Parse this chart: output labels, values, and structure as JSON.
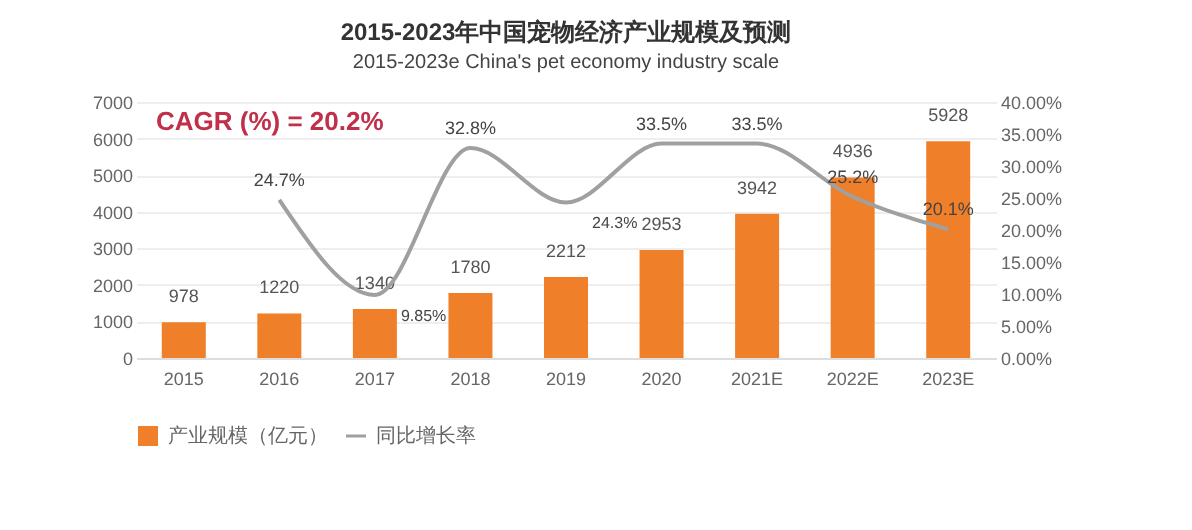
{
  "chart_data": {
    "type": "bar",
    "title": "2015-2023年中国宠物经济产业规模及预测",
    "subtitle": "2015-2023e China's pet economy industry scale",
    "categories": [
      "2015",
      "2016",
      "2017",
      "2018",
      "2019",
      "2020",
      "2021E",
      "2022E",
      "2023E"
    ],
    "series": [
      {
        "name": "产业规模（亿元）",
        "color": "#f07f2a",
        "values": [
          978,
          1220,
          1340,
          1780,
          2212,
          2953,
          3942,
          4936,
          5928
        ],
        "value_labels": [
          "978",
          "1220",
          "1340",
          "1780",
          "2212",
          "2953",
          "3942",
          "4936",
          "5928"
        ]
      },
      {
        "name": "同比增长率",
        "type": "line",
        "axis": "y2",
        "color": "#a0a0a0",
        "values": [
          null,
          24.7,
          9.85,
          32.8,
          24.3,
          33.5,
          33.5,
          25.2,
          20.1
        ],
        "value_labels": [
          null,
          "24.7%",
          "9.85%",
          "32.8%",
          "24.3%",
          "33.5%",
          "33.5%",
          "25.2%",
          "20.1%"
        ]
      }
    ],
    "ylim": [
      0,
      7000
    ],
    "yticks": [
      0,
      1000,
      2000,
      3000,
      4000,
      5000,
      6000,
      7000
    ],
    "y2lim": [
      0,
      40
    ],
    "y2ticks": [
      {
        "value": 0,
        "label": "0.00%"
      },
      {
        "value": 5,
        "label": "5.00%"
      },
      {
        "value": 10,
        "label": "10.00%"
      },
      {
        "value": 15,
        "label": "15.00%"
      },
      {
        "value": 20,
        "label": "20.00%"
      },
      {
        "value": 25,
        "label": "25.00%"
      },
      {
        "value": 30,
        "label": "30.00%"
      },
      {
        "value": 35,
        "label": "35.00%"
      },
      {
        "value": 40,
        "label": "40.00%"
      }
    ],
    "grid": "y",
    "legend": "bottom",
    "marker": "none",
    "line_style": "solid",
    "annotations": [
      "CAGR (%) = 20.2%"
    ]
  }
}
